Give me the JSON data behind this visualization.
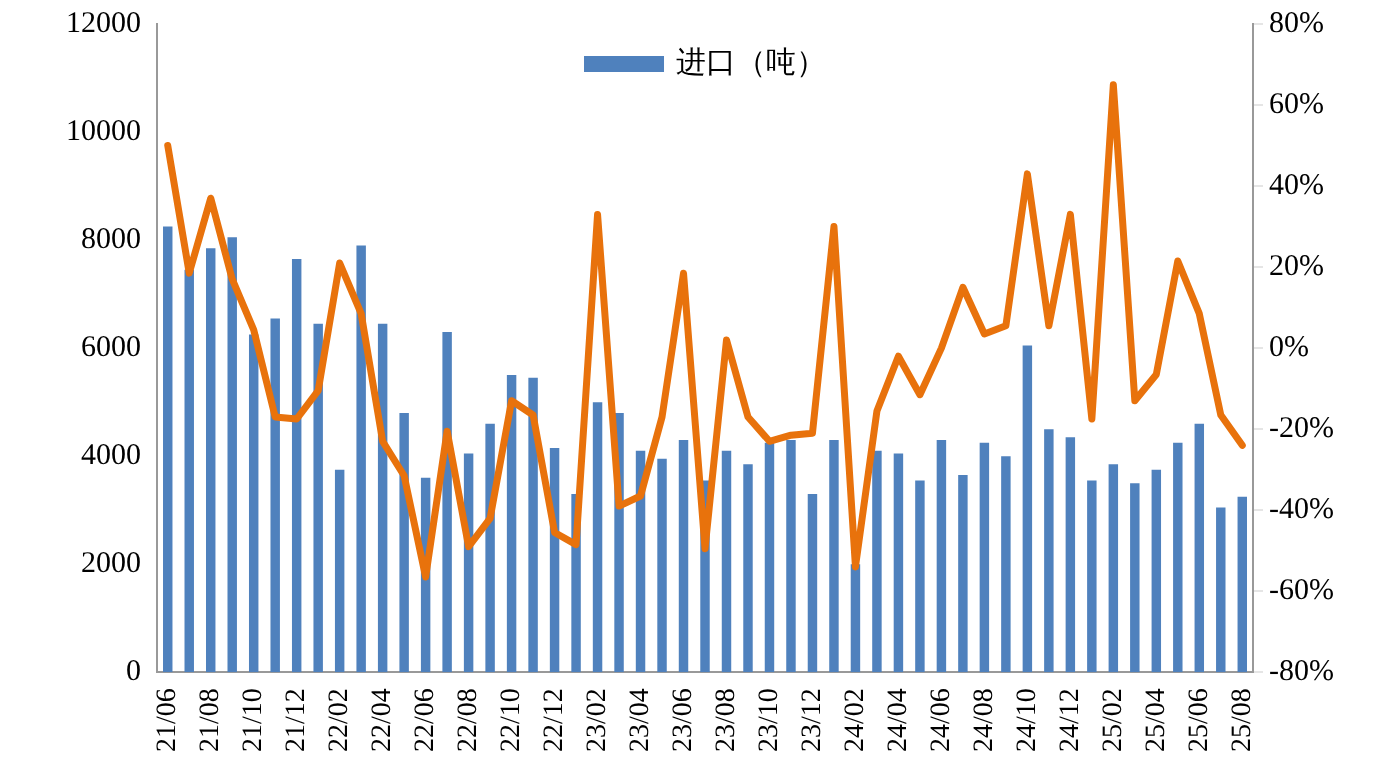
{
  "chart_data": {
    "type": "bar",
    "categories": [
      "21/06",
      null,
      "21/08",
      null,
      "21/10",
      null,
      "21/12",
      null,
      "22/02",
      null,
      "22/04",
      null,
      "22/06",
      null,
      "22/08",
      null,
      "22/10",
      null,
      "22/12",
      null,
      "23/02",
      null,
      "23/04",
      null,
      "23/06",
      null,
      "23/08",
      null,
      "23/10",
      null,
      "23/12",
      null,
      "24/02",
      null,
      "24/04",
      null,
      "24/06",
      null,
      "24/08",
      null,
      "24/10",
      null,
      "24/12",
      null,
      "25/02",
      null,
      "25/04",
      null,
      "25/06",
      null,
      "25/08"
    ],
    "series": [
      {
        "name": "进口（吨）",
        "color": "#4f81bd",
        "values": [
          8250,
          7450,
          7850,
          8050,
          6250,
          6550,
          7650,
          6450,
          3750,
          7900,
          6450,
          4800,
          3600,
          6300,
          4050,
          4600,
          5500,
          5450,
          4150,
          3300,
          5000,
          4800,
          4100,
          3950,
          4300,
          3550,
          4100,
          3850,
          4250,
          4300,
          3300,
          4300,
          2000,
          4100,
          4050,
          3550,
          4300,
          3650,
          4250,
          4000,
          6050,
          4500,
          4350,
          3550,
          3850,
          3500,
          3750,
          4250,
          4600,
          3050,
          3250
        ]
      },
      {
        "type": "line",
        "axis": "y2",
        "color": "#e8720c",
        "values": [
          50,
          18.5,
          37,
          17,
          4.5,
          -17,
          -17.5,
          -10.5,
          21,
          8.5,
          -23,
          -31.5,
          -56.5,
          -20.5,
          -49,
          -42,
          -13,
          -16.5,
          -45.5,
          -48.5,
          33,
          -39,
          -36.5,
          -17,
          18.5,
          -49.5,
          2,
          -17,
          -23,
          -21.5,
          -21,
          30,
          -54,
          -15.5,
          -2,
          -11.5,
          0,
          15,
          3.5,
          5.5,
          43,
          5.5,
          33,
          -17.5,
          65,
          -13,
          -6.5,
          21.5,
          8.5,
          -16.5,
          -24
        ]
      }
    ],
    "ylim": [
      0,
      12000
    ],
    "yticks": [
      0,
      2000,
      4000,
      6000,
      8000,
      10000,
      12000
    ],
    "y2lim": [
      -80,
      80
    ],
    "y2ticks": [
      {
        "value": -80,
        "label": "-80%"
      },
      {
        "value": -60,
        "label": "-60%"
      },
      {
        "value": -40,
        "label": "-40%"
      },
      {
        "value": -20,
        "label": "-20%"
      },
      {
        "value": 0,
        "label": "0%"
      },
      {
        "value": 20,
        "label": "20%"
      },
      {
        "value": 40,
        "label": "40%"
      },
      {
        "value": 60,
        "label": "60%"
      },
      {
        "value": 80,
        "label": "80%"
      }
    ],
    "legend": "top",
    "marker": "none",
    "line_style": "solid"
  }
}
